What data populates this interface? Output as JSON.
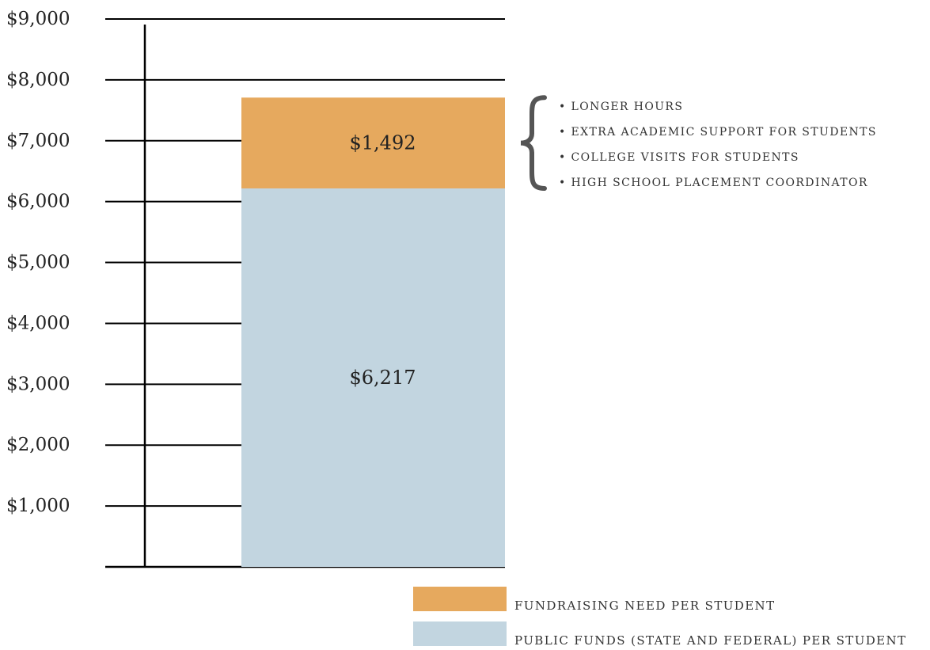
{
  "chart_data": {
    "type": "bar",
    "stacked": true,
    "title": "",
    "xlabel": "",
    "ylabel": "",
    "ylim": [
      0,
      9000
    ],
    "y_ticks": [
      1000,
      2000,
      3000,
      4000,
      5000,
      6000,
      7000,
      8000,
      9000
    ],
    "y_tick_labels": [
      "$1,000",
      "$2,000",
      "$3,000",
      "$4,000",
      "$5,000",
      "$6,000",
      "$7,000",
      "$8,000",
      "$9,000"
    ],
    "grid": true,
    "series": [
      {
        "name": "PUBLIC FUNDS (STATE AND FEDERAL) PER STUDENT",
        "values": [
          6217
        ],
        "label": "$6,217",
        "color": "#c2d5e0"
      },
      {
        "name": "FUNDRAISING NEED PER STUDENT",
        "values": [
          1492
        ],
        "label": "$1,492",
        "color": "#e6a95e"
      }
    ],
    "annotation": {
      "bracket_target": "FUNDRAISING NEED PER STUDENT",
      "items": [
        "• LONGER HOURS",
        "• EXTRA ACADEMIC SUPPORT FOR STUDENTS",
        "• COLLEGE VISITS FOR STUDENTS",
        "• HIGH SCHOOL PLACEMENT COORDINATOR"
      ]
    },
    "legend_placement": "bottom-right",
    "legend": [
      {
        "label": "FUNDRAISING NEED PER STUDENT",
        "color": "#e6a95e"
      },
      {
        "label": "PUBLIC FUNDS (STATE AND FEDERAL) PER STUDENT",
        "color": "#c2d5e0"
      }
    ]
  }
}
